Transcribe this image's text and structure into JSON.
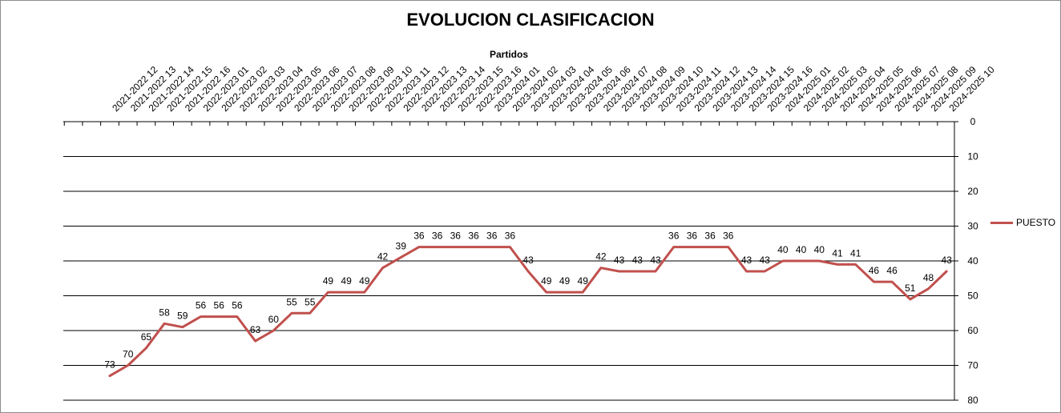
{
  "chart_data": {
    "type": "line",
    "title": "EVOLUCION CLASIFICACION",
    "xlabel": "Partidos",
    "ylabel": "",
    "y_axis_side": "right",
    "y_inverted": true,
    "ylim": [
      0,
      80
    ],
    "yticks": [
      0,
      10,
      20,
      30,
      40,
      50,
      60,
      70,
      80
    ],
    "grid": "horizontal",
    "legend_position": "right",
    "categories": [
      "2021-2022 12",
      "2021-2022 13",
      "2021-2022 14",
      "2021-2022 15",
      "2021-2022 16",
      "2022-2023 01",
      "2022-2023 02",
      "2022-2023 03",
      "2022-2023 04",
      "2022-2023 05",
      "2022-2023 06",
      "2022-2023 07",
      "2022-2023 08",
      "2022-2023 09",
      "2022-2023 10",
      "2022-2023 11",
      "2022-2023 12",
      "2022-2023 13",
      "2022-2023 14",
      "2022-2023 15",
      "2022-2023 16",
      "2023-2024 01",
      "2023-2024 02",
      "2023-2024 03",
      "2023-2024 04",
      "2023-2024 05",
      "2023-2024 06",
      "2023-2024 07",
      "2023-2024 08",
      "2023-2024 09",
      "2023-2024 10",
      "2023-2024 11",
      "2023-2024 12",
      "2023-2024 13",
      "2023-2024 14",
      "2023-2024 15",
      "2023-2024 16",
      "2024-2025 01",
      "2024-2025 02",
      "2024-2025 03",
      "2024-2025 04",
      "2024-2025 05",
      "2024-2025 06",
      "2024-2025 07",
      "2024-2025 08",
      "2024-2025 09",
      "2024-2025 10"
    ],
    "series": [
      {
        "name": "PUESTO",
        "color": "#c0504d",
        "values": [
          73,
          70,
          65,
          58,
          59,
          56,
          56,
          56,
          63,
          60,
          55,
          55,
          49,
          49,
          49,
          42,
          39,
          36,
          36,
          36,
          36,
          36,
          36,
          43,
          49,
          49,
          49,
          42,
          43,
          43,
          43,
          36,
          36,
          36,
          36,
          43,
          43,
          40,
          40,
          40,
          41,
          41,
          46,
          46,
          51,
          48,
          43
        ]
      }
    ]
  }
}
